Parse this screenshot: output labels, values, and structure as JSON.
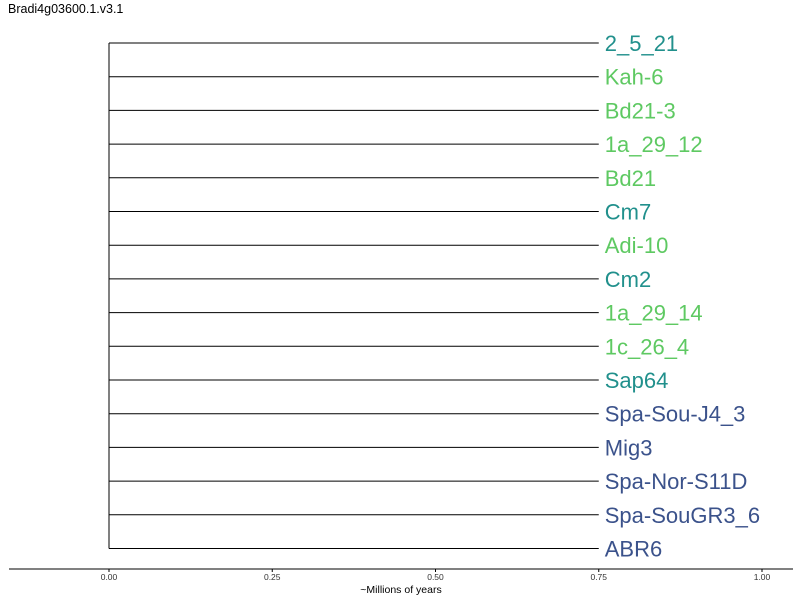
{
  "title": "Bradi4g03600.1.v3.1",
  "axis": {
    "label": "~Millions of years",
    "ticks": [
      "0.00",
      "0.25",
      "0.50",
      "0.75",
      "1.00"
    ],
    "range": [
      0.0,
      1.0
    ]
  },
  "colors": {
    "teal": "#21908c",
    "green": "#5ec962",
    "blue": "#3b528b",
    "line": "#000000"
  },
  "tree": {
    "root_depth": 0.0,
    "leaf_depth": 0.75,
    "leaves": [
      {
        "name": "2_5_21",
        "color": "teal"
      },
      {
        "name": "Kah-6",
        "color": "green"
      },
      {
        "name": "Bd21-3",
        "color": "green"
      },
      {
        "name": "1a_29_12",
        "color": "green"
      },
      {
        "name": "Bd21",
        "color": "green"
      },
      {
        "name": "Cm7",
        "color": "teal"
      },
      {
        "name": "Adi-10",
        "color": "green"
      },
      {
        "name": "Cm2",
        "color": "teal"
      },
      {
        "name": "1a_29_14",
        "color": "green"
      },
      {
        "name": "1c_26_4",
        "color": "green"
      },
      {
        "name": "Sap64",
        "color": "teal"
      },
      {
        "name": "Spa-Sou-J4_3",
        "color": "blue"
      },
      {
        "name": "Mig3",
        "color": "blue"
      },
      {
        "name": "Spa-Nor-S11D",
        "color": "blue"
      },
      {
        "name": "Spa-SouGR3_6",
        "color": "blue"
      },
      {
        "name": "ABR6",
        "color": "blue"
      }
    ]
  }
}
